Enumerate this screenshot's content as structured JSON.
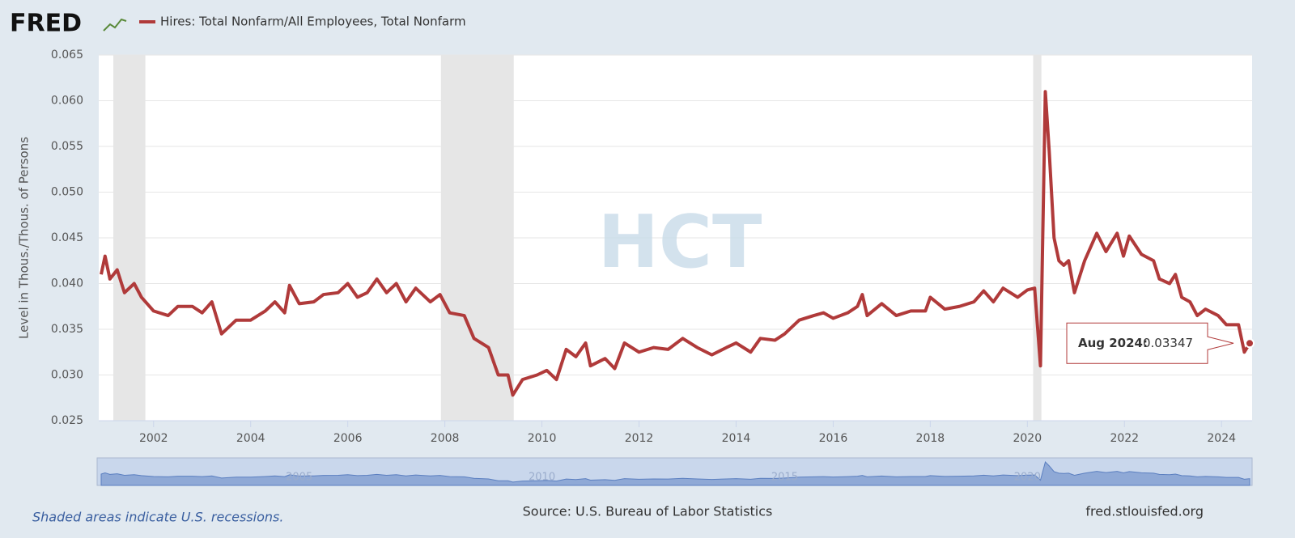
{
  "brand": "FRED",
  "footer": {
    "recession_note": "Shaded areas indicate U.S. recessions.",
    "source": "Source: U.S. Bureau of Labor Statistics",
    "site": "fred.stlouisfed.org"
  },
  "watermark": "HCT",
  "chart_data": {
    "type": "line",
    "ylabel": "Level in Thous./Thous. of Persons",
    "xlim": [
      2000.87,
      2024.63
    ],
    "xticks": [
      2002,
      2004,
      2006,
      2008,
      2010,
      2012,
      2014,
      2016,
      2018,
      2020,
      2022,
      2024
    ],
    "ylim": [
      0.025,
      0.065
    ],
    "yticks": [
      0.025,
      {
        "value": 0.03,
        "label": "0.030"
      },
      0.035,
      {
        "value": 0.04,
        "label": "0.040"
      },
      0.045,
      {
        "value": 0.05,
        "label": "0.050"
      },
      0.055,
      {
        "value": 0.06,
        "label": "0.060"
      },
      0.065
    ],
    "grid": true,
    "recessions": [
      [
        2001.17,
        2001.83
      ],
      [
        2007.92,
        2009.42
      ],
      [
        2020.12,
        2020.29
      ]
    ],
    "navigator_ticks": [
      2005,
      2010,
      2015,
      2020
    ],
    "tooltip": {
      "date": "Aug 2024:",
      "value": 0.03347
    },
    "x": [
      2000.92,
      2001.0,
      2001.1,
      2001.25,
      2001.4,
      2001.6,
      2001.75,
      2002.0,
      2002.3,
      2002.5,
      2002.8,
      2003.0,
      2003.2,
      2003.4,
      2003.7,
      2004.0,
      2004.3,
      2004.5,
      2004.7,
      2004.8,
      2005.0,
      2005.3,
      2005.5,
      2005.8,
      2006.0,
      2006.2,
      2006.4,
      2006.6,
      2006.8,
      2007.0,
      2007.2,
      2007.4,
      2007.7,
      2007.9,
      2008.1,
      2008.4,
      2008.6,
      2008.9,
      2009.1,
      2009.3,
      2009.4,
      2009.6,
      2009.9,
      2010.1,
      2010.3,
      2010.5,
      2010.7,
      2010.9,
      2011.0,
      2011.3,
      2011.5,
      2011.7,
      2012.0,
      2012.3,
      2012.6,
      2012.9,
      2013.2,
      2013.5,
      2013.8,
      2014.0,
      2014.3,
      2014.5,
      2014.8,
      2015.0,
      2015.3,
      2015.6,
      2015.8,
      2016.0,
      2016.3,
      2016.5,
      2016.6,
      2016.7,
      2017.0,
      2017.3,
      2017.6,
      2017.9,
      2018.0,
      2018.3,
      2018.6,
      2018.9,
      2019.1,
      2019.3,
      2019.5,
      2019.8,
      2020.0,
      2020.15,
      2020.27,
      2020.37,
      2020.45,
      2020.55,
      2020.65,
      2020.75,
      2020.85,
      2020.97,
      2021.18,
      2021.43,
      2021.62,
      2021.85,
      2021.98,
      2022.1,
      2022.35,
      2022.6,
      2022.72,
      2022.93,
      2023.05,
      2023.18,
      2023.35,
      2023.5,
      2023.67,
      2023.93,
      2024.1,
      2024.35,
      2024.47,
      2024.58
    ],
    "series": [
      {
        "name": "Hires: Total Nonfarm/All Employees, Total Nonfarm",
        "color": "#b03a3a",
        "values": [
          0.041,
          0.043,
          0.0405,
          0.0415,
          0.039,
          0.04,
          0.0385,
          0.037,
          0.0365,
          0.0375,
          0.0375,
          0.0368,
          0.038,
          0.0345,
          0.036,
          0.036,
          0.037,
          0.038,
          0.0368,
          0.0398,
          0.0378,
          0.038,
          0.0388,
          0.039,
          0.04,
          0.0385,
          0.039,
          0.0405,
          0.039,
          0.04,
          0.038,
          0.0395,
          0.038,
          0.0388,
          0.0368,
          0.0365,
          0.034,
          0.033,
          0.03,
          0.03,
          0.0278,
          0.0295,
          0.03,
          0.0305,
          0.0295,
          0.0328,
          0.032,
          0.0335,
          0.031,
          0.0318,
          0.0307,
          0.0335,
          0.0325,
          0.033,
          0.0328,
          0.034,
          0.033,
          0.0322,
          0.033,
          0.0335,
          0.0325,
          0.034,
          0.0338,
          0.0345,
          0.036,
          0.0365,
          0.0368,
          0.0362,
          0.0368,
          0.0375,
          0.0388,
          0.0365,
          0.0378,
          0.0365,
          0.037,
          0.037,
          0.0385,
          0.0372,
          0.0375,
          0.038,
          0.0392,
          0.038,
          0.0395,
          0.0385,
          0.0393,
          0.0395,
          0.031,
          0.061,
          0.0545,
          0.045,
          0.0425,
          0.042,
          0.0425,
          0.039,
          0.0425,
          0.0455,
          0.0435,
          0.0455,
          0.043,
          0.0452,
          0.0432,
          0.0425,
          0.0405,
          0.04,
          0.041,
          0.0385,
          0.038,
          0.0365,
          0.0372,
          0.0365,
          0.0355,
          0.0355,
          0.0325,
          0.03347
        ]
      }
    ]
  }
}
